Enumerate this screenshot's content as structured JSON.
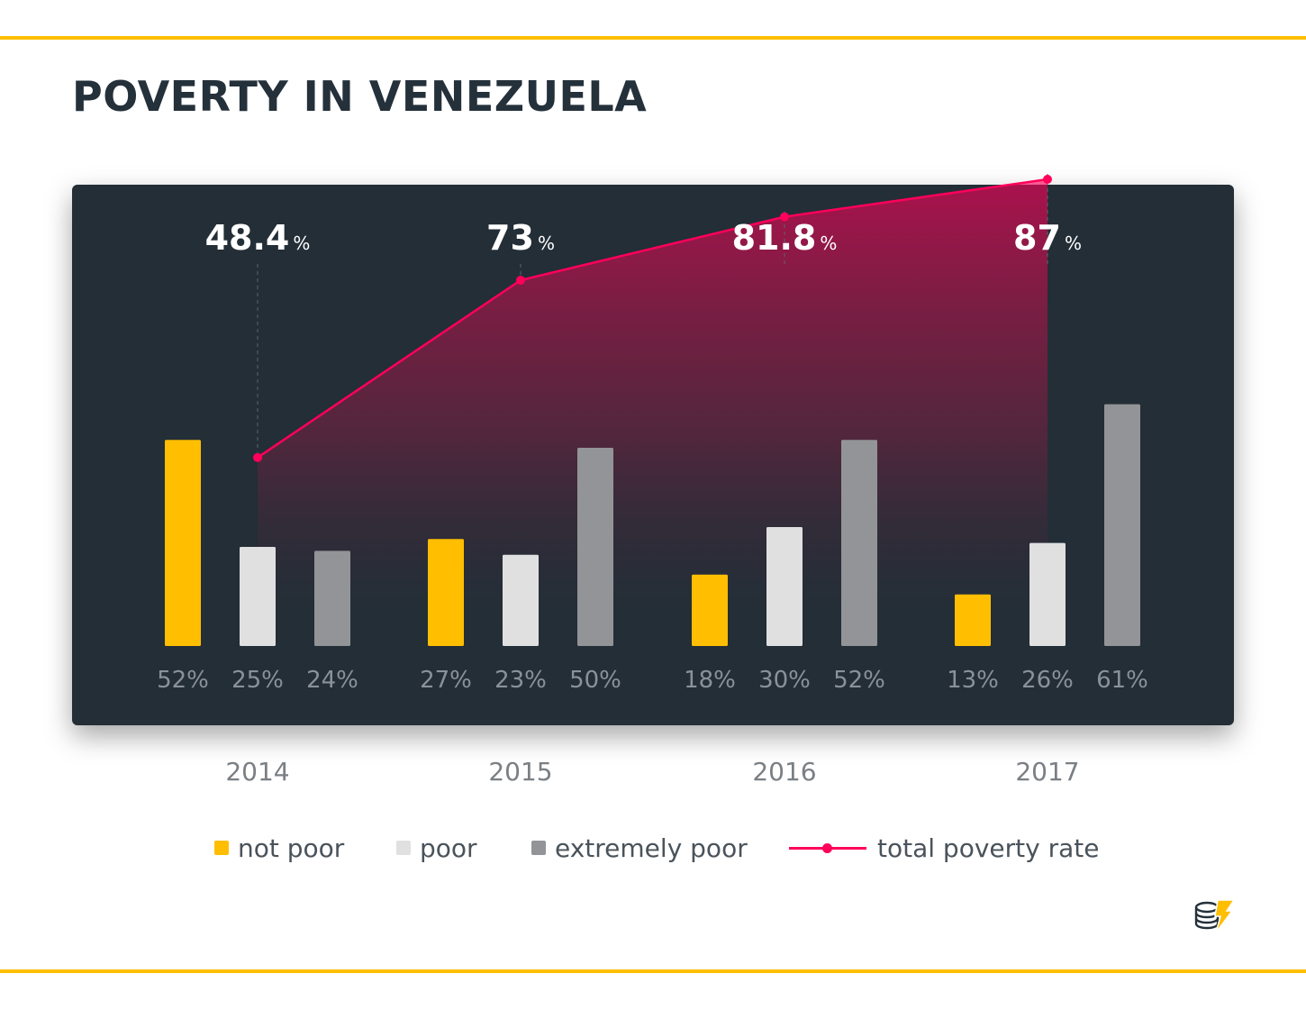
{
  "title": "POVERTY IN VENEZUELA",
  "colors": {
    "not_poor": "#FFBE00",
    "poor": "#E0E0E1",
    "extremely_poor": "#939497",
    "total_line": "#FF005A",
    "panel": "#232E37",
    "value_label": "#8A9198",
    "year_label": "#7A7F84"
  },
  "chart_data": {
    "type": "bar",
    "title": "POVERTY IN VENEZUELA",
    "categories": [
      "2014",
      "2015",
      "2016",
      "2017"
    ],
    "series": [
      {
        "name": "not poor",
        "values": [
          52,
          27,
          18,
          13
        ],
        "labels": [
          "52%",
          "27%",
          "18%",
          "13%"
        ]
      },
      {
        "name": "poor",
        "values": [
          25,
          23,
          30,
          26
        ],
        "labels": [
          "25%",
          "23%",
          "30%",
          "26%"
        ]
      },
      {
        "name": "extremely poor",
        "values": [
          24,
          50,
          52,
          61
        ],
        "labels": [
          "24%",
          "50%",
          "52%",
          "61%"
        ]
      }
    ],
    "line_series": {
      "name": "total poverty rate",
      "type": "area-line",
      "values": [
        48.4,
        73,
        81.8,
        87
      ],
      "labels": [
        "48.4",
        "73",
        "81.8",
        "87"
      ],
      "unit": "%"
    },
    "ylim": [
      0,
      100
    ],
    "grid": false,
    "legend_position": "bottom"
  },
  "legend": [
    {
      "key": "not_poor",
      "label": "not poor"
    },
    {
      "key": "poor",
      "label": "poor"
    },
    {
      "key": "extremely_poor",
      "label": "extremely poor"
    },
    {
      "key": "total_line",
      "label": "total poverty rate"
    }
  ],
  "logo_icon": "coin-stack-lightning-icon"
}
